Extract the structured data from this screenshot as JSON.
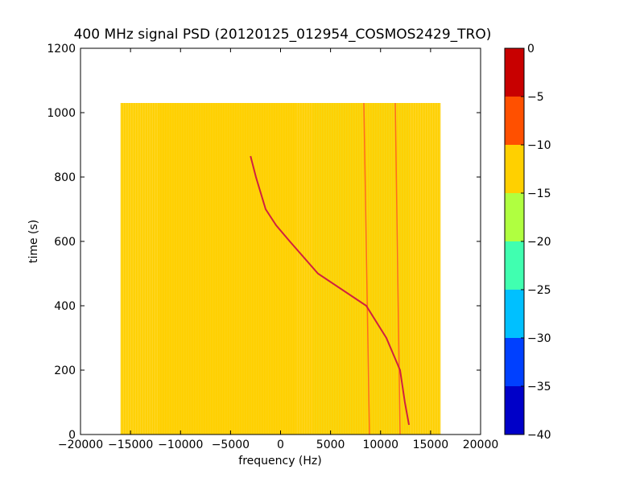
{
  "chart_data": {
    "type": "heatmap",
    "title": "400 MHz signal PSD (20120125_012954_COSMOS2429_TRO)",
    "xlabel": "frequency (Hz)",
    "ylabel": "time (s)",
    "xlim": [
      -20000,
      20000
    ],
    "ylim": [
      0,
      1200
    ],
    "xticks": [
      "−20000",
      "−15000",
      "−10000",
      "−5000",
      "0",
      "5000",
      "10000",
      "15000",
      "20000"
    ],
    "xtick_values": [
      -20000,
      -15000,
      -10000,
      -5000,
      0,
      5000,
      10000,
      15000,
      20000
    ],
    "yticks": [
      "0",
      "200",
      "400",
      "600",
      "800",
      "1000",
      "1200"
    ],
    "ytick_values": [
      0,
      200,
      400,
      600,
      800,
      1000,
      1200
    ],
    "data_extent": {
      "freq": [
        -16000,
        16000
      ],
      "time": [
        0,
        1030
      ]
    },
    "background_level": -12,
    "doppler_curve": {
      "freq": [
        -3000,
        -2460,
        -1490,
        -440,
        925,
        3742,
        8570,
        10580,
        11950,
        12430,
        12840
      ],
      "time": [
        865,
        800,
        700,
        650,
        600,
        500,
        400,
        300,
        200,
        100,
        30
      ]
    },
    "vertical_lines": [
      {
        "freq_top": 8330,
        "freq_bottom": 8890
      },
      {
        "freq_top": 11470,
        "freq_bottom": 11950
      }
    ],
    "colorbar": {
      "levels": [
        -40,
        -35,
        -30,
        -25,
        -20,
        -15,
        -10,
        -5,
        0
      ],
      "tick_labels": [
        "−40",
        "−35",
        "−30",
        "−25",
        "−20",
        "−15",
        "−10",
        "−5",
        "0"
      ],
      "colors": [
        "#0000c8",
        "#0040ff",
        "#00c0ff",
        "#40ffb0",
        "#b0ff40",
        "#ffd000",
        "#ff5000",
        "#c80000"
      ]
    },
    "grid": false
  }
}
